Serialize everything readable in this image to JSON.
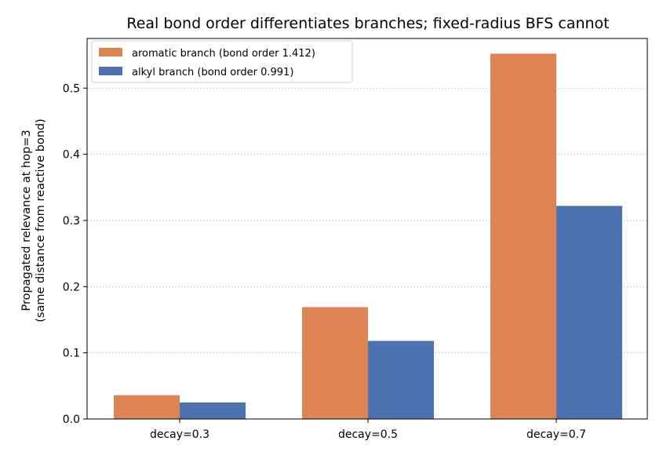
{
  "chart_data": {
    "type": "bar",
    "title": "Real bond order differentiates branches; fixed-radius BFS cannot",
    "xlabel": "",
    "ylabel": [
      "Propagated relevance at hop=3",
      "(same distance from reactive bond)"
    ],
    "categories": [
      "decay=0.3",
      "decay=0.5",
      "decay=0.7"
    ],
    "series": [
      {
        "name": "aromatic branch (bond order 1.412)",
        "color": "#dd8452",
        "values": [
          0.036,
          0.169,
          0.552
        ]
      },
      {
        "name": "alkyl branch (bond order 0.991)",
        "color": "#4c72b0",
        "values": [
          0.025,
          0.118,
          0.322
        ]
      }
    ],
    "ylim": [
      0,
      0.575
    ],
    "yticks": [
      "0.0",
      "0.1",
      "0.2",
      "0.3",
      "0.4",
      "0.5"
    ],
    "grid": "y-dotted",
    "legend_position": "top-left"
  }
}
